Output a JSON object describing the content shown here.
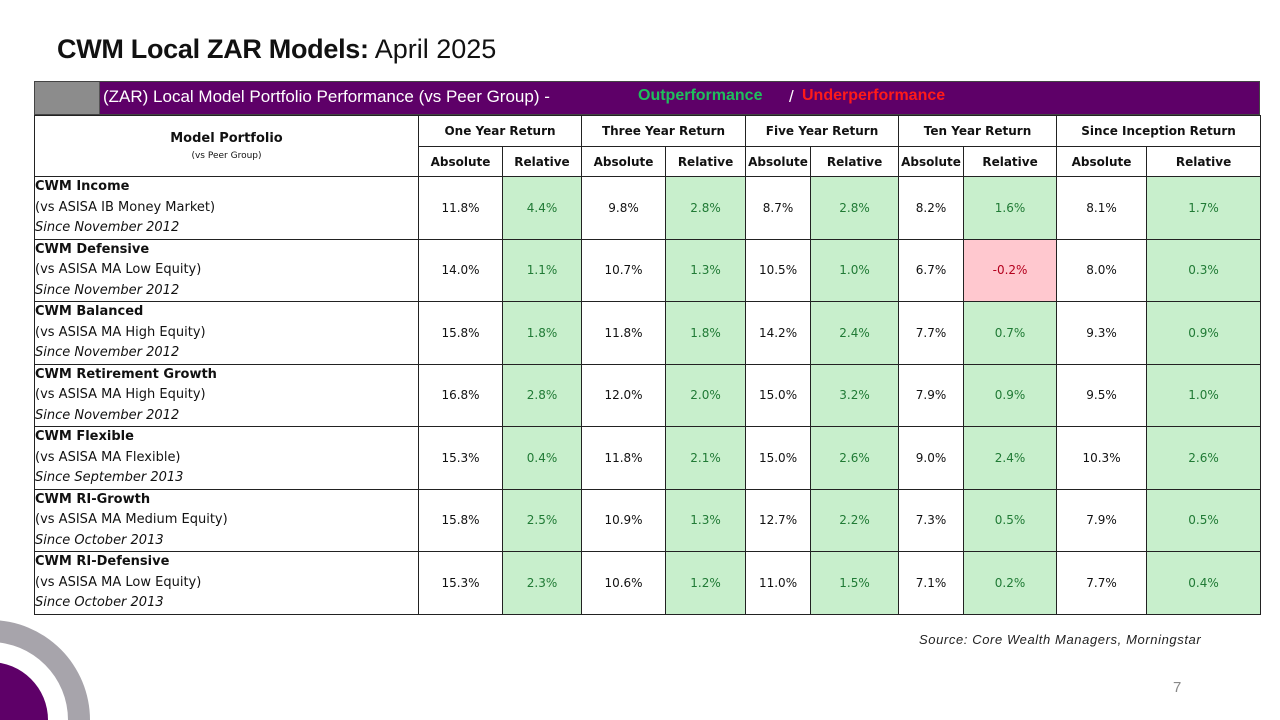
{
  "title": {
    "bold": "CWM Local ZAR Models:",
    "rest": " April 2025"
  },
  "banner": {
    "text": "(ZAR) Local Model Portfolio Performance (vs Peer Group) -",
    "outperformance": "Outperformance",
    "slash": "/",
    "underperformance": "Underperformance",
    "colors": {
      "background": "#5e0068",
      "out": "#1fbf5c",
      "under": "#ff1a1a"
    }
  },
  "table": {
    "first_header": {
      "label": "Model Portfolio",
      "sub": "(vs Peer Group)"
    },
    "groups": [
      "One Year Return",
      "Three Year Return",
      "Five Year Return",
      "Ten Year Return",
      "Since Inception Return"
    ],
    "subheaders": [
      "Absolute",
      "Relative"
    ],
    "rows": [
      {
        "name": "CWM Income",
        "peer": "(vs ASISA IB Money Market)",
        "since": "Since November 2012",
        "values": [
          "11.8%",
          "4.4%",
          "9.8%",
          "2.8%",
          "8.7%",
          "2.8%",
          "8.2%",
          "1.6%",
          "8.1%",
          "1.7%"
        ]
      },
      {
        "name": "CWM Defensive",
        "peer": "(vs ASISA MA Low Equity)",
        "since": "Since November 2012",
        "values": [
          "14.0%",
          "1.1%",
          "10.7%",
          "1.3%",
          "10.5%",
          "1.0%",
          "6.7%",
          "-0.2%",
          "8.0%",
          "0.3%"
        ]
      },
      {
        "name": "CWM Balanced",
        "peer": "(vs ASISA MA High Equity)",
        "since": "Since November 2012",
        "values": [
          "15.8%",
          "1.8%",
          "11.8%",
          "1.8%",
          "14.2%",
          "2.4%",
          "7.7%",
          "0.7%",
          "9.3%",
          "0.9%"
        ]
      },
      {
        "name": "CWM Retirement Growth",
        "peer": "(vs ASISA MA High Equity)",
        "since": "Since November 2012",
        "values": [
          "16.8%",
          "2.8%",
          "12.0%",
          "2.0%",
          "15.0%",
          "3.2%",
          "7.9%",
          "0.9%",
          "9.5%",
          "1.0%"
        ]
      },
      {
        "name": "CWM Flexible",
        "peer": "(vs ASISA MA Flexible)",
        "since": "Since September 2013",
        "values": [
          "15.3%",
          "0.4%",
          "11.8%",
          "2.1%",
          "15.0%",
          "2.6%",
          "9.0%",
          "2.4%",
          "10.3%",
          "2.6%"
        ]
      },
      {
        "name": "CWM RI-Growth",
        "peer": "(vs ASISA MA Medium Equity)",
        "since": "Since October 2013",
        "values": [
          "15.8%",
          "2.5%",
          "10.9%",
          "1.3%",
          "12.7%",
          "2.2%",
          "7.3%",
          "0.5%",
          "7.9%",
          "0.5%"
        ]
      },
      {
        "name": "CWM RI-Defensive",
        "peer": "(vs ASISA MA Low Equity)",
        "since": "Since October 2013",
        "values": [
          "15.3%",
          "2.3%",
          "10.6%",
          "1.2%",
          "11.0%",
          "1.5%",
          "7.1%",
          "0.2%",
          "7.7%",
          "0.4%"
        ]
      }
    ]
  },
  "source": "Source: Core Wealth Managers, Morningstar",
  "page_number": "7"
}
